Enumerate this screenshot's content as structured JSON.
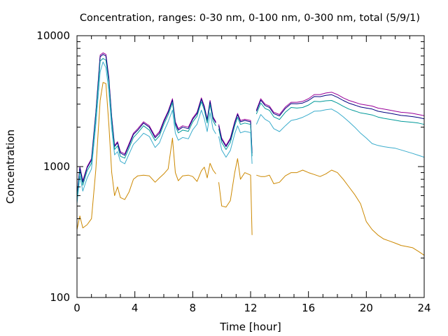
{
  "chart_data": {
    "type": "line",
    "title": "Concentration, ranges: 0-30 nm, 0-100 nm, 0-300 nm, total (5/9/1)",
    "xlabel": "Time [hour]",
    "ylabel": "Concentration",
    "xlim": [
      0,
      24
    ],
    "ylim": [
      100,
      10000
    ],
    "yscale": "log",
    "grid": false,
    "legend": "none",
    "xticks": [
      "0",
      "4",
      "8",
      "12",
      "16",
      "20",
      "24"
    ],
    "yticks": [
      "100",
      "1000",
      "10000"
    ],
    "series": [
      {
        "color": "#990099",
        "x": [
          0,
          0.2,
          0.4,
          0.7,
          1.0,
          1.3,
          1.6,
          1.8,
          2.0,
          2.2,
          2.4,
          2.6,
          2.8,
          3.0,
          3.3,
          3.6,
          3.9,
          4.2,
          4.6,
          5.0,
          5.4,
          5.7,
          6.0,
          6.3,
          6.6,
          6.8,
          7.0,
          7.3,
          7.7,
          8.0,
          8.3,
          8.6,
          8.8,
          9.0,
          9.2,
          9.4,
          9.6,
          null,
          9.8,
          10.0,
          10.3,
          10.6,
          10.9,
          11.1,
          11.3,
          11.6,
          12.0,
          12.1,
          null,
          12.4,
          12.7,
          13.0,
          13.3,
          13.6,
          14.0,
          14.4,
          14.8,
          15.2,
          15.6,
          16.0,
          16.4,
          16.8,
          17.2,
          17.6,
          18.0,
          18.4,
          18.8,
          19.2,
          19.6,
          20.0,
          20.4,
          20.8,
          21.2,
          21.6,
          22.0,
          22.4,
          22.8,
          23.2,
          23.6,
          24.0
        ],
        "y": [
          600,
          1000,
          780,
          1000,
          1150,
          2600,
          7100,
          7400,
          7200,
          4800,
          2400,
          1450,
          1550,
          1300,
          1250,
          1500,
          1800,
          1950,
          2200,
          2050,
          1700,
          1850,
          2250,
          2650,
          3300,
          2200,
          1950,
          2050,
          2000,
          2350,
          2600,
          3350,
          2900,
          2300,
          3200,
          2400,
          2200,
          null,
          2100,
          1650,
          1450,
          1650,
          2200,
          2550,
          2250,
          2300,
          2250,
          1280,
          null,
          2700,
          3300,
          3000,
          2900,
          2600,
          2500,
          2850,
          3100,
          3100,
          3150,
          3300,
          3550,
          3550,
          3650,
          3700,
          3550,
          3350,
          3200,
          3100,
          3000,
          2950,
          2900,
          2800,
          2750,
          2700,
          2650,
          2600,
          2580,
          2550,
          2500,
          2450
        ]
      },
      {
        "color": "#000080",
        "x": [
          0,
          0.2,
          0.4,
          0.7,
          1.0,
          1.3,
          1.6,
          1.8,
          2.0,
          2.2,
          2.4,
          2.6,
          2.8,
          3.0,
          3.3,
          3.6,
          3.9,
          4.2,
          4.6,
          5.0,
          5.4,
          5.7,
          6.0,
          6.3,
          6.6,
          6.8,
          7.0,
          7.3,
          7.7,
          8.0,
          8.3,
          8.6,
          8.8,
          9.0,
          9.2,
          9.4,
          9.6,
          null,
          9.8,
          10.0,
          10.3,
          10.6,
          10.9,
          11.1,
          11.3,
          11.6,
          12.0,
          12.1,
          null,
          12.4,
          12.7,
          13.0,
          13.3,
          13.6,
          14.0,
          14.4,
          14.8,
          15.2,
          15.6,
          16.0,
          16.4,
          16.8,
          17.2,
          17.6,
          18.0,
          18.4,
          18.8,
          19.2,
          19.6,
          20.0,
          20.4,
          20.8,
          21.2,
          21.6,
          22.0,
          22.4,
          22.8,
          23.2,
          23.6,
          24.0
        ],
        "y": [
          590,
          980,
          760,
          980,
          1120,
          2550,
          6900,
          7200,
          7000,
          4650,
          2350,
          1420,
          1520,
          1270,
          1220,
          1460,
          1760,
          1900,
          2150,
          2000,
          1660,
          1800,
          2200,
          2600,
          3220,
          2150,
          1900,
          2000,
          1950,
          2300,
          2540,
          3280,
          2830,
          2250,
          3130,
          2350,
          2150,
          null,
          2050,
          1610,
          1420,
          1610,
          2150,
          2500,
          2200,
          2250,
          2200,
          1260,
          null,
          2650,
          3220,
          2930,
          2830,
          2540,
          2440,
          2780,
          3030,
          3020,
          3060,
          3200,
          3430,
          3420,
          3500,
          3540,
          3390,
          3200,
          3050,
          2950,
          2850,
          2800,
          2750,
          2650,
          2600,
          2560,
          2510,
          2460,
          2440,
          2410,
          2370,
          2320
        ]
      },
      {
        "color": "#009999",
        "x": [
          0,
          0.2,
          0.4,
          0.7,
          1.0,
          1.3,
          1.6,
          1.8,
          2.0,
          2.2,
          2.4,
          2.6,
          2.8,
          3.0,
          3.3,
          3.6,
          3.9,
          4.2,
          4.6,
          5.0,
          5.4,
          5.7,
          6.0,
          6.3,
          6.6,
          6.8,
          7.0,
          7.3,
          7.7,
          8.0,
          8.3,
          8.6,
          8.8,
          9.0,
          9.2,
          9.4,
          9.6,
          null,
          9.8,
          10.0,
          10.3,
          10.6,
          10.9,
          11.1,
          11.3,
          11.6,
          12.0,
          12.1,
          null,
          12.4,
          12.7,
          13.0,
          13.3,
          13.6,
          14.0,
          14.4,
          14.8,
          15.2,
          15.6,
          16.0,
          16.4,
          16.8,
          17.2,
          17.6,
          18.0,
          18.4,
          18.8,
          19.2,
          19.6,
          20.0,
          20.4,
          20.8,
          21.2,
          21.6,
          22.0,
          22.4,
          22.8,
          23.2,
          23.6,
          24.0
        ],
        "y": [
          560,
          930,
          720,
          930,
          1060,
          2420,
          6400,
          6700,
          6500,
          4400,
          2230,
          1350,
          1440,
          1200,
          1160,
          1390,
          1670,
          1810,
          2050,
          1900,
          1580,
          1720,
          2100,
          2480,
          3080,
          2050,
          1810,
          1900,
          1860,
          2190,
          2430,
          3130,
          2700,
          2150,
          2990,
          2240,
          2050,
          null,
          1950,
          1530,
          1350,
          1530,
          2050,
          2380,
          2100,
          2150,
          2100,
          1200,
          null,
          2520,
          3060,
          2780,
          2690,
          2400,
          2290,
          2600,
          2830,
          2800,
          2830,
          2950,
          3150,
          3130,
          3180,
          3200,
          3060,
          2890,
          2750,
          2660,
          2570,
          2530,
          2480,
          2390,
          2340,
          2300,
          2260,
          2220,
          2200,
          2180,
          2150,
          2100
        ]
      },
      {
        "color": "#3aaccc",
        "x": [
          0,
          0.2,
          0.4,
          0.7,
          1.0,
          1.3,
          1.6,
          1.8,
          2.0,
          2.2,
          2.4,
          2.6,
          2.8,
          3.0,
          3.3,
          3.6,
          3.9,
          4.2,
          4.6,
          5.0,
          5.4,
          5.7,
          6.0,
          6.3,
          6.6,
          6.8,
          7.0,
          7.3,
          7.7,
          8.0,
          8.3,
          8.6,
          8.8,
          9.0,
          9.2,
          9.4,
          9.6,
          null,
          9.8,
          10.0,
          10.3,
          10.6,
          10.9,
          11.1,
          11.3,
          11.6,
          12.0,
          12.1,
          null,
          12.4,
          12.7,
          13.0,
          13.3,
          13.6,
          14.0,
          14.4,
          14.8,
          15.2,
          15.6,
          16.0,
          16.4,
          16.8,
          17.2,
          17.6,
          18.0,
          18.4,
          18.8,
          19.2,
          19.6,
          20.0,
          20.4,
          20.8,
          21.2,
          21.6,
          22.0,
          22.4,
          22.8,
          23.2,
          23.6,
          24.0
        ],
        "y": [
          520,
          850,
          650,
          820,
          960,
          2100,
          5300,
          6300,
          5700,
          3800,
          1950,
          1230,
          1300,
          1100,
          1050,
          1250,
          1480,
          1600,
          1800,
          1700,
          1400,
          1520,
          1850,
          2200,
          2700,
          1800,
          1590,
          1670,
          1630,
          1910,
          2110,
          2700,
          2320,
          1850,
          2580,
          1940,
          1780,
          null,
          1700,
          1340,
          1180,
          1330,
          1780,
          2050,
          1810,
          1860,
          1820,
          1050,
          null,
          2100,
          2500,
          2300,
          2200,
          1950,
          1850,
          2050,
          2250,
          2300,
          2380,
          2500,
          2650,
          2660,
          2720,
          2750,
          2600,
          2400,
          2200,
          2000,
          1800,
          1650,
          1500,
          1450,
          1420,
          1400,
          1380,
          1340,
          1300,
          1260,
          1220,
          1180
        ]
      },
      {
        "color": "#cc8800",
        "x": [
          0,
          0.2,
          0.4,
          0.7,
          1.0,
          1.3,
          1.6,
          1.8,
          2.0,
          2.2,
          2.4,
          2.6,
          2.8,
          3.0,
          3.3,
          3.6,
          3.9,
          4.2,
          4.6,
          5.0,
          5.4,
          5.7,
          6.0,
          6.3,
          6.6,
          6.8,
          7.0,
          7.3,
          7.7,
          8.0,
          8.3,
          8.6,
          8.8,
          9.0,
          9.2,
          9.4,
          9.6,
          null,
          9.8,
          10.0,
          10.3,
          10.6,
          10.9,
          11.1,
          11.3,
          11.6,
          12.0,
          12.1,
          null,
          12.4,
          12.7,
          13.0,
          13.3,
          13.6,
          14.0,
          14.4,
          14.8,
          15.2,
          15.6,
          16.0,
          16.4,
          16.8,
          17.2,
          17.6,
          18.0,
          18.4,
          18.8,
          19.2,
          19.6,
          20.0,
          20.4,
          20.8,
          21.2,
          21.6,
          22.0,
          22.4,
          22.8,
          23.2,
          23.6,
          24.0
        ],
        "y": [
          330,
          420,
          340,
          360,
          400,
          950,
          3200,
          4400,
          4300,
          2100,
          900,
          600,
          700,
          580,
          560,
          640,
          800,
          850,
          860,
          850,
          760,
          820,
          880,
          960,
          1650,
          900,
          780,
          850,
          860,
          840,
          770,
          930,
          990,
          820,
          1060,
          940,
          880,
          null,
          760,
          500,
          490,
          550,
          900,
          1150,
          800,
          900,
          860,
          300,
          null,
          860,
          840,
          840,
          860,
          740,
          760,
          850,
          900,
          900,
          940,
          900,
          870,
          840,
          880,
          940,
          900,
          800,
          700,
          610,
          520,
          380,
          330,
          300,
          280,
          270,
          260,
          250,
          245,
          240,
          225,
          210
        ]
      }
    ]
  }
}
